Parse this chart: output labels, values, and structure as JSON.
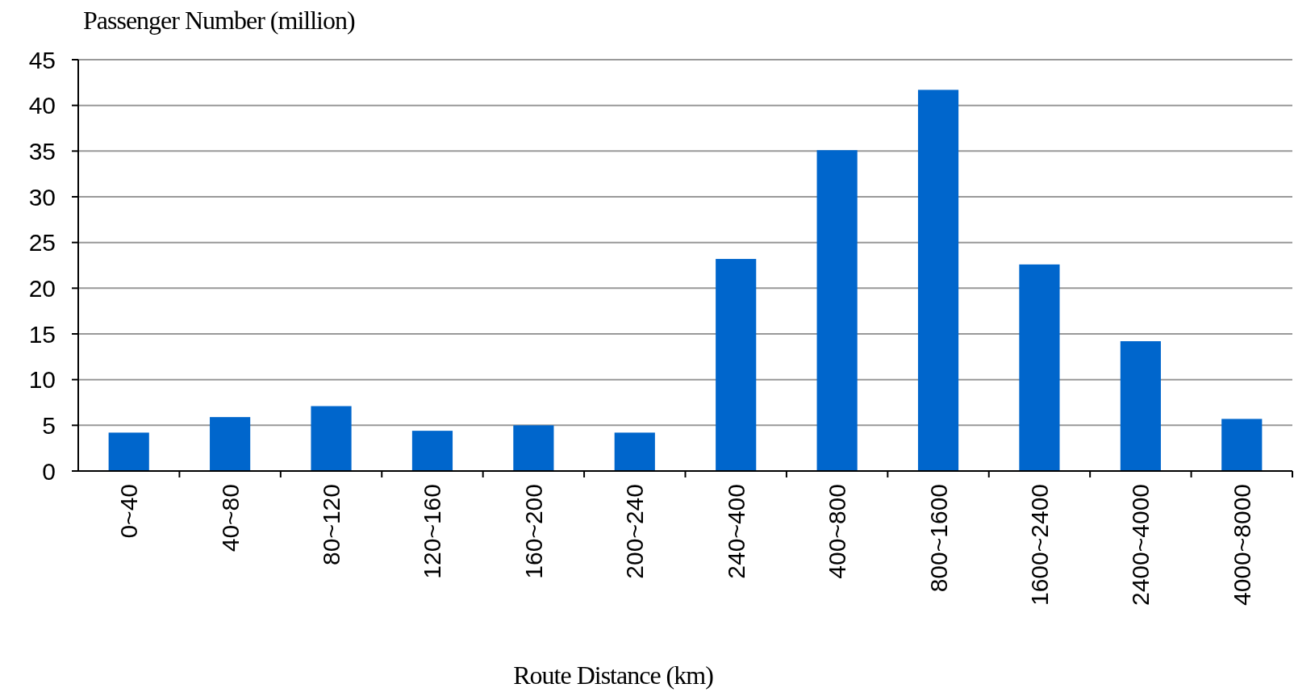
{
  "chart_data": {
    "type": "bar",
    "xlabel": "Route Distance (km)",
    "ylabel": "Passenger Number (million)",
    "categories": [
      "0~40",
      "40~80",
      "80~120",
      "120~160",
      "160~200",
      "200~240",
      "240~400",
      "400~800",
      "800~1600",
      "1600~2400",
      "2400~4000",
      "4000~8000"
    ],
    "values": [
      4.2,
      5.9,
      7.1,
      4.4,
      5.0,
      4.2,
      23.2,
      35.1,
      41.7,
      22.6,
      14.2,
      5.7
    ],
    "color": "#0066cc",
    "ylim": [
      0,
      45
    ],
    "yticks": [
      0,
      5,
      10,
      15,
      20,
      25,
      30,
      35,
      40,
      45
    ],
    "grid": "y"
  }
}
